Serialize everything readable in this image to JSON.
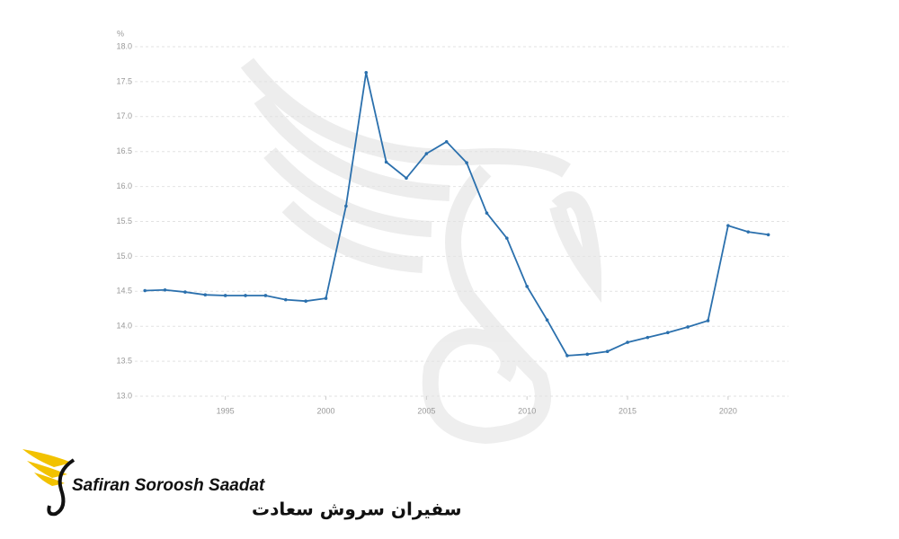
{
  "chart_data": {
    "type": "line",
    "y_unit_label": "%",
    "x": [
      1991,
      1992,
      1993,
      1994,
      1995,
      1996,
      1997,
      1998,
      1999,
      2000,
      2001,
      2002,
      2003,
      2004,
      2005,
      2006,
      2007,
      2008,
      2009,
      2010,
      2011,
      2012,
      2013,
      2014,
      2015,
      2016,
      2017,
      2018,
      2019,
      2020,
      2021,
      2022
    ],
    "values": [
      14.51,
      14.52,
      14.49,
      14.45,
      14.44,
      14.44,
      14.44,
      14.38,
      14.36,
      14.4,
      15.72,
      17.63,
      16.35,
      16.12,
      16.47,
      16.64,
      16.34,
      15.62,
      15.26,
      14.57,
      14.09,
      13.58,
      13.6,
      13.64,
      13.77,
      13.84,
      13.91,
      13.99,
      14.08,
      15.44,
      15.35,
      15.31
    ],
    "color": "#2b70ad",
    "xlim": [
      1990.5,
      2023
    ],
    "xticks": [
      1995,
      2000,
      2005,
      2010,
      2015,
      2020
    ],
    "ylim": [
      13.0,
      18.0
    ],
    "yticks": [
      {
        "value": 13.0,
        "label": "13.0"
      },
      {
        "value": 13.5,
        "label": "13.5"
      },
      {
        "value": 14.0,
        "label": "14.0"
      },
      {
        "value": 14.5,
        "label": "14.5"
      },
      {
        "value": 15.0,
        "label": "15.0"
      },
      {
        "value": 15.5,
        "label": "15.5"
      },
      {
        "value": 16.0,
        "label": "16.0"
      },
      {
        "value": 16.5,
        "label": "16.5"
      },
      {
        "value": 17.0,
        "label": "17.0"
      },
      {
        "value": 17.5,
        "label": "17.5"
      },
      {
        "value": 18.0,
        "label": "18.0"
      }
    ],
    "grid": true
  },
  "brand": {
    "name": "Safiran Soroosh Saadat",
    "name_fa": "سفیران سروش سعادت"
  }
}
